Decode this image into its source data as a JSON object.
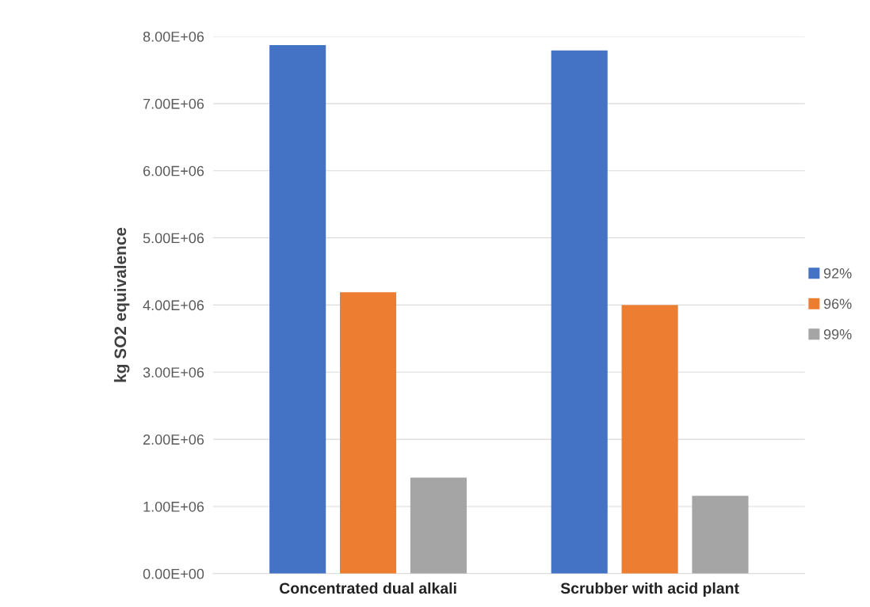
{
  "chart_data": {
    "type": "bar",
    "ylabel": "kg SO2 equivalence",
    "categories": [
      "Concentrated dual alkali",
      "Scrubber with acid plant"
    ],
    "series": [
      {
        "name": "92%",
        "color": "#4472c4",
        "values": [
          7870000,
          7790000
        ]
      },
      {
        "name": "96%",
        "color": "#ed7d31",
        "values": [
          4190000,
          4000000
        ]
      },
      {
        "name": "99%",
        "color": "#a5a5a5",
        "values": [
          1430000,
          1160000
        ]
      }
    ],
    "ylim": [
      0,
      8000000
    ],
    "yticks": [
      {
        "value": 0,
        "label": "0.00E+00"
      },
      {
        "value": 1000000,
        "label": "1.00E+06"
      },
      {
        "value": 2000000,
        "label": "2.00E+06"
      },
      {
        "value": 3000000,
        "label": "3.00E+06"
      },
      {
        "value": 4000000,
        "label": "4.00E+06"
      },
      {
        "value": 5000000,
        "label": "5.00E+06"
      },
      {
        "value": 6000000,
        "label": "6.00E+06"
      },
      {
        "value": 7000000,
        "label": "7.00E+06"
      },
      {
        "value": 8000000,
        "label": "8.00E+06"
      }
    ],
    "grid": "y",
    "legend": "right"
  }
}
